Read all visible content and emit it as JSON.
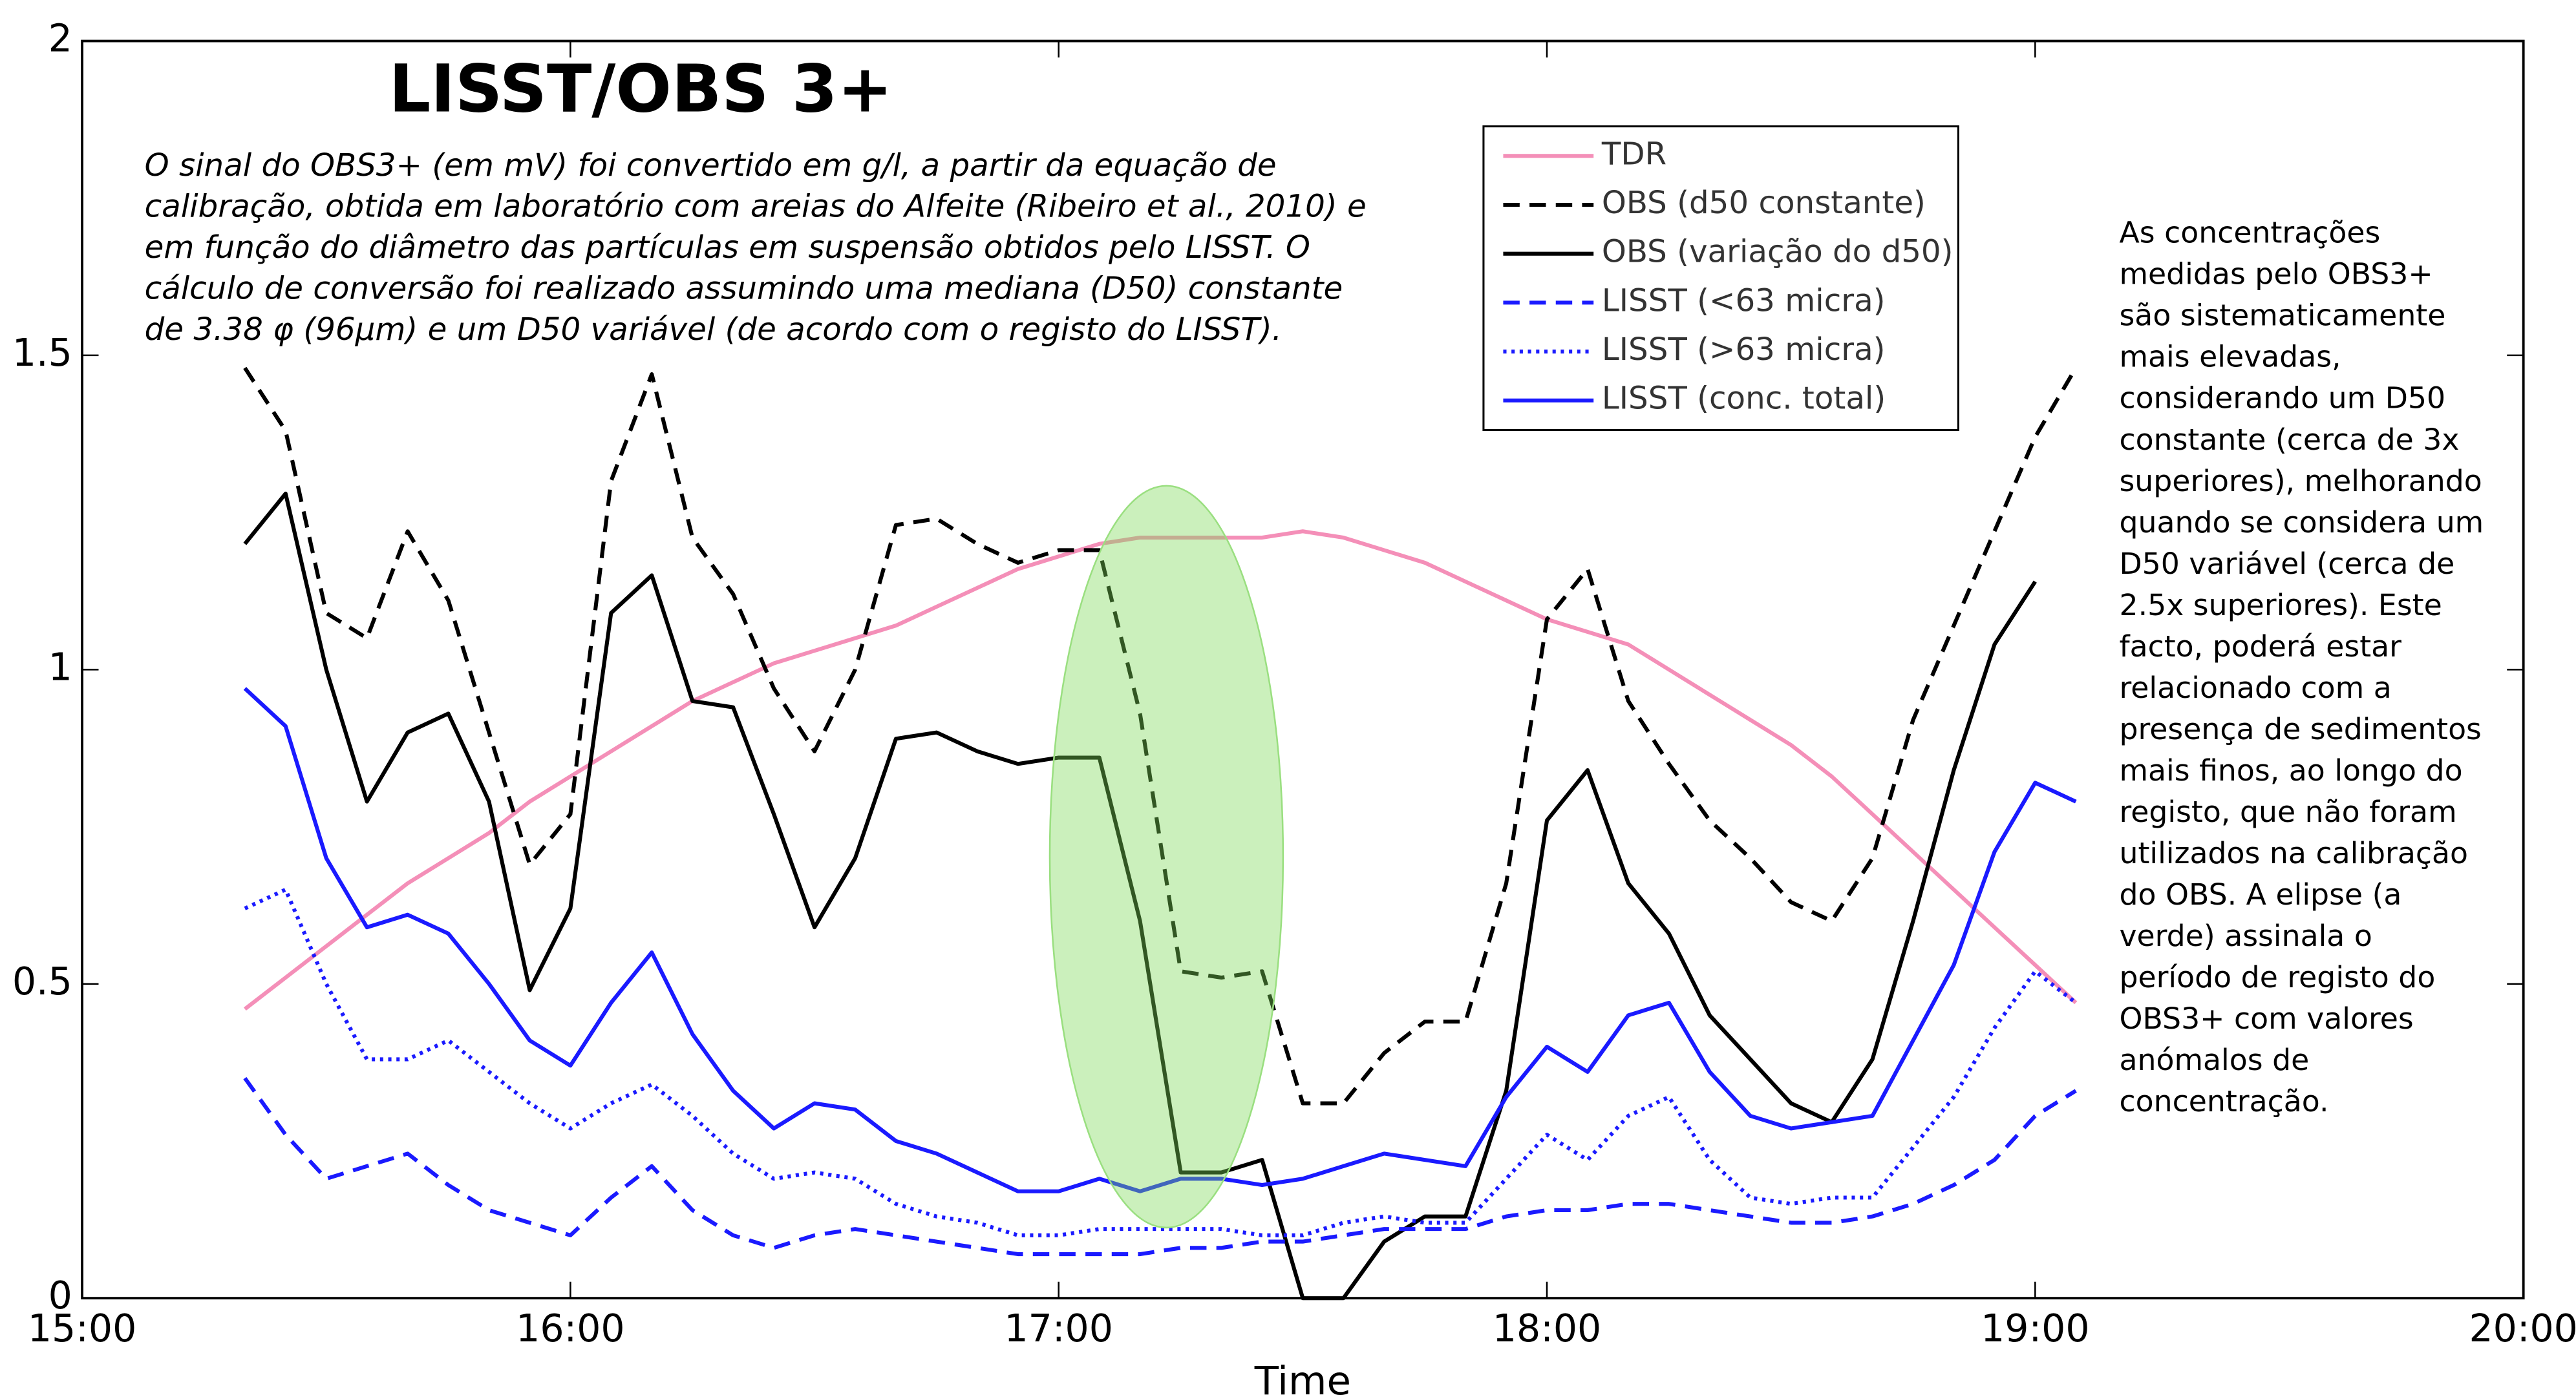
{
  "chart_data": {
    "type": "line",
    "title": "LISST/OBS 3+",
    "annotation_lines": [
      "O sinal do OBS3+ (em mV) foi convertido em g/l, a partir da equação de",
      "calibração, obtida em laboratório com areias do Alfeite (Ribeiro et al., 2010) e",
      "em função do diâmetro das partículas em suspensão obtidos pelo LISST. O",
      "cálculo de conversão foi realizado assumindo uma mediana (D50) constante",
      "de 3.38 φ (96µm) e um D50 variável (de acordo com o registo do LISST)."
    ],
    "note_lines": [
      "As concentrações",
      "medidas pelo OBS3+",
      "são sistematicamente",
      "mais elevadas,",
      "considerando um D50",
      "constante (cerca de 3x",
      "superiores), melhorando",
      "quando se considera um",
      "D50 variável (cerca de",
      "2.5x superiores). Este",
      "facto, poderá estar",
      "relacionado com a",
      "presença de sedimentos",
      "mais finos, ao longo do",
      "registo, que não foram",
      "utilizados na calibração",
      "do OBS. A elipse  (a",
      "verde) assinala o",
      "período de registo do",
      "OBS3+ com valores",
      "anómalos de",
      "concentração."
    ],
    "xlabel": "Time",
    "x": [
      15.3333,
      15.4167,
      15.5,
      15.5833,
      15.6667,
      15.75,
      15.8333,
      15.9167,
      16,
      16.0833,
      16.1667,
      16.25,
      16.3333,
      16.4167,
      16.5,
      16.5833,
      16.6667,
      16.75,
      16.8333,
      16.9167,
      17,
      17.0833,
      17.1667,
      17.25,
      17.3333,
      17.4167,
      17.5,
      17.5833,
      17.6667,
      17.75,
      17.8333,
      17.9167,
      18,
      18.0833,
      18.1667,
      18.25,
      18.3333,
      18.4167,
      18.5,
      18.5833,
      18.6667,
      18.75,
      18.8333,
      18.9167,
      19,
      19.0833
    ],
    "xlim": [
      15,
      20
    ],
    "xticks": [
      {
        "value": 15,
        "label": "15:00"
      },
      {
        "value": 16,
        "label": "16:00"
      },
      {
        "value": 17,
        "label": "17:00"
      },
      {
        "value": 18,
        "label": "18:00"
      },
      {
        "value": 19,
        "label": "19:00"
      },
      {
        "value": 20,
        "label": "20:00"
      }
    ],
    "ylim": [
      0,
      2
    ],
    "yticks": [
      0,
      0.5,
      1,
      1.5,
      2
    ],
    "series": [
      {
        "name": "TDR",
        "color": "#f48fb8",
        "style": "solid",
        "values": [
          0.46,
          0.51,
          0.56,
          0.61,
          0.66,
          0.7,
          0.74,
          0.79,
          0.83,
          0.87,
          0.91,
          0.95,
          0.98,
          1.01,
          1.03,
          1.05,
          1.07,
          1.1,
          1.13,
          1.16,
          1.18,
          1.2,
          1.21,
          1.21,
          1.21,
          1.21,
          1.22,
          1.21,
          1.19,
          1.17,
          1.14,
          1.11,
          1.08,
          1.06,
          1.04,
          1.0,
          0.96,
          0.92,
          0.88,
          0.83,
          0.77,
          0.71,
          0.65,
          0.59,
          0.53,
          0.47
        ]
      },
      {
        "name": "OBS (d50 constante)",
        "color": "#000000",
        "style": "dashed",
        "values": [
          1.48,
          1.38,
          1.09,
          1.05,
          1.22,
          1.11,
          0.9,
          0.69,
          0.77,
          1.3,
          1.47,
          1.21,
          1.12,
          0.97,
          0.87,
          1.0,
          1.23,
          1.24,
          1.2,
          1.17,
          1.19,
          1.19,
          0.93,
          0.52,
          0.51,
          0.52,
          0.31,
          0.31,
          0.39,
          0.44,
          0.44,
          0.66,
          1.08,
          1.16,
          0.95,
          0.85,
          0.76,
          0.7,
          0.63,
          0.6,
          0.7,
          0.92,
          1.07,
          1.22,
          1.37,
          1.48
        ]
      },
      {
        "name": "OBS (variação do d50)",
        "color": "#000000",
        "style": "solid",
        "values": [
          1.2,
          1.28,
          1.0,
          0.79,
          0.9,
          0.93,
          0.79,
          0.49,
          0.62,
          1.09,
          1.15,
          0.95,
          0.94,
          0.77,
          0.59,
          0.7,
          0.89,
          0.9,
          0.87,
          0.85,
          0.86,
          0.86,
          0.6,
          0.2,
          0.2,
          0.22,
          0.0,
          0.0,
          0.09,
          0.13,
          0.13,
          0.33,
          0.76,
          0.84,
          0.66,
          0.58,
          0.45,
          0.38,
          0.31,
          0.28,
          0.38,
          0.6,
          0.84,
          1.04,
          1.14,
          null
        ]
      },
      {
        "name": "LISST (<63 micra)",
        "color": "#1a1aff",
        "style": "dashed",
        "values": [
          0.35,
          0.26,
          0.19,
          0.21,
          0.23,
          0.18,
          0.14,
          0.12,
          0.1,
          0.16,
          0.21,
          0.14,
          0.1,
          0.08,
          0.1,
          0.11,
          0.1,
          0.09,
          0.08,
          0.07,
          0.07,
          0.07,
          0.07,
          0.08,
          0.08,
          0.09,
          0.09,
          0.1,
          0.11,
          0.11,
          0.11,
          0.13,
          0.14,
          0.14,
          0.15,
          0.15,
          0.14,
          0.13,
          0.12,
          0.12,
          0.13,
          0.15,
          0.18,
          0.22,
          0.29,
          0.33
        ]
      },
      {
        "name": "LISST (>63 micra)",
        "color": "#1a1aff",
        "style": "dotted",
        "values": [
          0.62,
          0.65,
          0.5,
          0.38,
          0.38,
          0.41,
          0.36,
          0.31,
          0.27,
          0.31,
          0.34,
          0.29,
          0.23,
          0.19,
          0.2,
          0.19,
          0.15,
          0.13,
          0.12,
          0.1,
          0.1,
          0.11,
          0.11,
          0.11,
          0.11,
          0.1,
          0.1,
          0.12,
          0.13,
          0.12,
          0.12,
          0.19,
          0.26,
          0.22,
          0.29,
          0.32,
          0.22,
          0.16,
          0.15,
          0.16,
          0.16,
          0.24,
          0.32,
          0.43,
          0.52,
          0.47
        ]
      },
      {
        "name": "LISST (conc. total)",
        "color": "#1a1aff",
        "style": "solid",
        "values": [
          0.97,
          0.91,
          0.7,
          0.59,
          0.61,
          0.58,
          0.5,
          0.41,
          0.37,
          0.47,
          0.55,
          0.42,
          0.33,
          0.27,
          0.31,
          0.3,
          0.25,
          0.23,
          0.2,
          0.17,
          0.17,
          0.19,
          0.17,
          0.19,
          0.19,
          0.18,
          0.19,
          0.21,
          0.23,
          0.22,
          0.21,
          0.32,
          0.4,
          0.36,
          0.45,
          0.47,
          0.36,
          0.29,
          0.27,
          0.28,
          0.29,
          0.41,
          0.53,
          0.71,
          0.82,
          0.79
        ]
      }
    ]
  }
}
